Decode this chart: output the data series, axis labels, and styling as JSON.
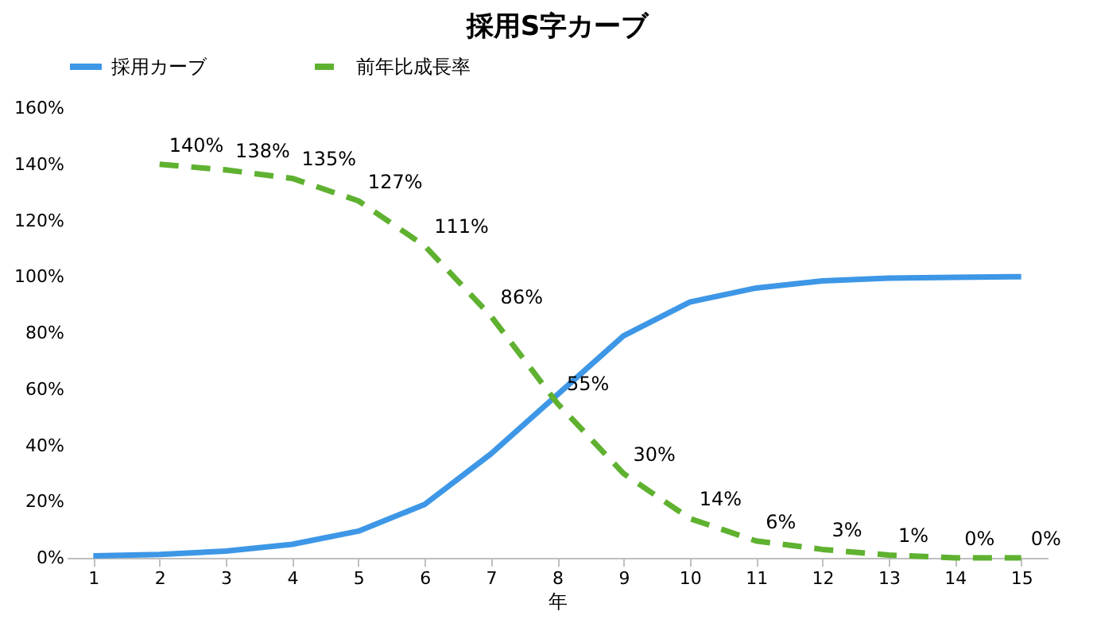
{
  "chart_data": {
    "type": "line",
    "title": "採用S字カーブ",
    "xlabel": "年",
    "x": [
      1,
      2,
      3,
      4,
      5,
      6,
      7,
      8,
      9,
      10,
      11,
      12,
      13,
      14,
      15
    ],
    "xlim": [
      0.6,
      15.4
    ],
    "xticks": [
      1,
      2,
      3,
      4,
      5,
      6,
      7,
      8,
      9,
      10,
      11,
      12,
      13,
      14,
      15
    ],
    "ylim": [
      0,
      160
    ],
    "yticks": [
      {
        "value": 0,
        "label": "0%"
      },
      {
        "value": 20,
        "label": "20%"
      },
      {
        "value": 40,
        "label": "40%"
      },
      {
        "value": 60,
        "label": "60%"
      },
      {
        "value": 80,
        "label": "80%"
      },
      {
        "value": 100,
        "label": "100%"
      },
      {
        "value": 120,
        "label": "120%"
      },
      {
        "value": 140,
        "label": "140%"
      },
      {
        "value": 160,
        "label": "160%"
      }
    ],
    "legend": "top",
    "marker": "none",
    "grid": false,
    "series": [
      {
        "name": "採用カーブ",
        "color": "#3d97e6",
        "line_style": "solid",
        "values": [
          0.7,
          1.2,
          2.4,
          4.8,
          9.5,
          19,
          37,
          58,
          79,
          91,
          96,
          98.5,
          99.5,
          99.8,
          100
        ]
      },
      {
        "name": "前年比成長率",
        "color": "#5fb130",
        "line_style": "dashed",
        "x": [
          2,
          3,
          4,
          5,
          6,
          7,
          8,
          9,
          10,
          11,
          12,
          13,
          14,
          15
        ],
        "values": [
          140,
          138,
          135,
          127,
          111,
          86,
          55,
          30,
          14,
          6,
          3,
          1,
          0,
          0
        ],
        "value_labels": [
          "140%",
          "138%",
          "135%",
          "127%",
          "111%",
          "86%",
          "55%",
          "30%",
          "14%",
          "6%",
          "3%",
          "1%",
          "0%",
          "0%"
        ]
      }
    ]
  }
}
